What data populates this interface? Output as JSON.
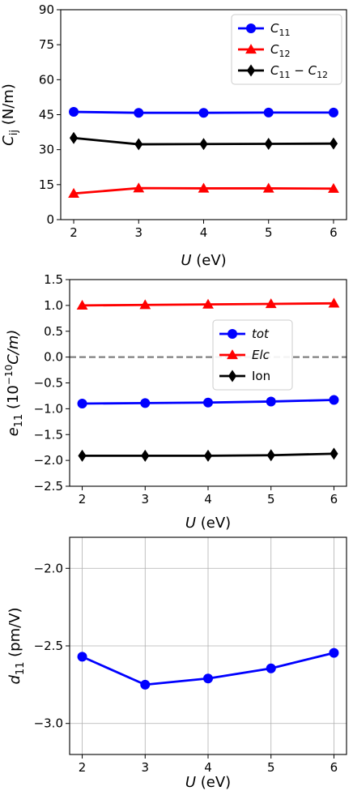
{
  "chart_data": [
    {
      "type": "line",
      "x": [
        2,
        3,
        4,
        5,
        6
      ],
      "xlim": [
        1.8,
        6.2
      ],
      "ylim": [
        0,
        90
      ],
      "xticks": [
        "2",
        "3",
        "4",
        "5",
        "6"
      ],
      "yticks": [
        "0",
        "15",
        "30",
        "45",
        "60",
        "75",
        "90"
      ],
      "xlabel": {
        "var": "U",
        "unit": " (eV)"
      },
      "ylabel": {
        "base": "C",
        "sub": "ij",
        "unit": " (N/m)"
      },
      "grid": false,
      "legend_position": "upper-right",
      "series": [
        {
          "name": "C",
          "name_sub": "11",
          "name_rest": "",
          "color": "#0000ff",
          "marker": "circle",
          "values": [
            46.2,
            45.8,
            45.8,
            45.9,
            45.9
          ]
        },
        {
          "name": "C",
          "name_sub": "12",
          "name_rest": "",
          "color": "#ff0000",
          "marker": "triangle",
          "values": [
            11.2,
            13.5,
            13.4,
            13.4,
            13.3
          ]
        },
        {
          "name": "C",
          "name_sub": "11",
          "name_rest": " − C",
          "name_sub2": "12",
          "color": "#000000",
          "marker": "diamond",
          "values": [
            35.0,
            32.3,
            32.4,
            32.5,
            32.6
          ]
        }
      ]
    },
    {
      "type": "line",
      "x": [
        2,
        3,
        4,
        5,
        6
      ],
      "xlim": [
        1.8,
        6.2
      ],
      "ylim": [
        -2.5,
        1.5
      ],
      "xticks": [
        "2",
        "3",
        "4",
        "5",
        "6"
      ],
      "yticks": [
        "−2.5",
        "−2.0",
        "−1.5",
        "−1.0",
        "−0.5",
        "0.0",
        "0.5",
        "1.0",
        "1.5"
      ],
      "xlabel": {
        "var": "U",
        "unit": " (eV)"
      },
      "ylabel": {
        "base": "e",
        "sub": "11",
        "unit_pre": " (10",
        "sup": "−10",
        "unit_post": "C/m)"
      },
      "grid": false,
      "hline": {
        "y": 0,
        "style": "dashed",
        "color": "#808080"
      },
      "legend_position": "center-right",
      "series": [
        {
          "name": "tot",
          "color": "#0000ff",
          "marker": "circle",
          "italic": true,
          "values": [
            -0.9,
            -0.89,
            -0.88,
            -0.86,
            -0.83
          ]
        },
        {
          "name": "Elc",
          "color": "#ff0000",
          "marker": "triangle",
          "italic": true,
          "values": [
            1.0,
            1.01,
            1.02,
            1.03,
            1.04
          ]
        },
        {
          "name": "Ion",
          "color": "#000000",
          "marker": "diamond",
          "italic": false,
          "values": [
            -1.91,
            -1.91,
            -1.91,
            -1.9,
            -1.87
          ]
        }
      ]
    },
    {
      "type": "line",
      "x": [
        2,
        3,
        4,
        5,
        6
      ],
      "xlim": [
        1.8,
        6.2
      ],
      "ylim": [
        -3.2,
        -1.8
      ],
      "xticks": [
        "2",
        "3",
        "4",
        "5",
        "6"
      ],
      "yticks": [
        "−3.0",
        "−2.5",
        "−2.0"
      ],
      "xlabel": {
        "var": "U",
        "unit": " (eV)"
      },
      "ylabel": {
        "base": "d",
        "sub": "11",
        "unit": " (pm/V)"
      },
      "grid": true,
      "legend_position": "none",
      "series": [
        {
          "color": "#0000ff",
          "marker": "circle",
          "values": [
            -2.57,
            -2.75,
            -2.71,
            -2.645,
            -2.545
          ]
        }
      ]
    }
  ]
}
